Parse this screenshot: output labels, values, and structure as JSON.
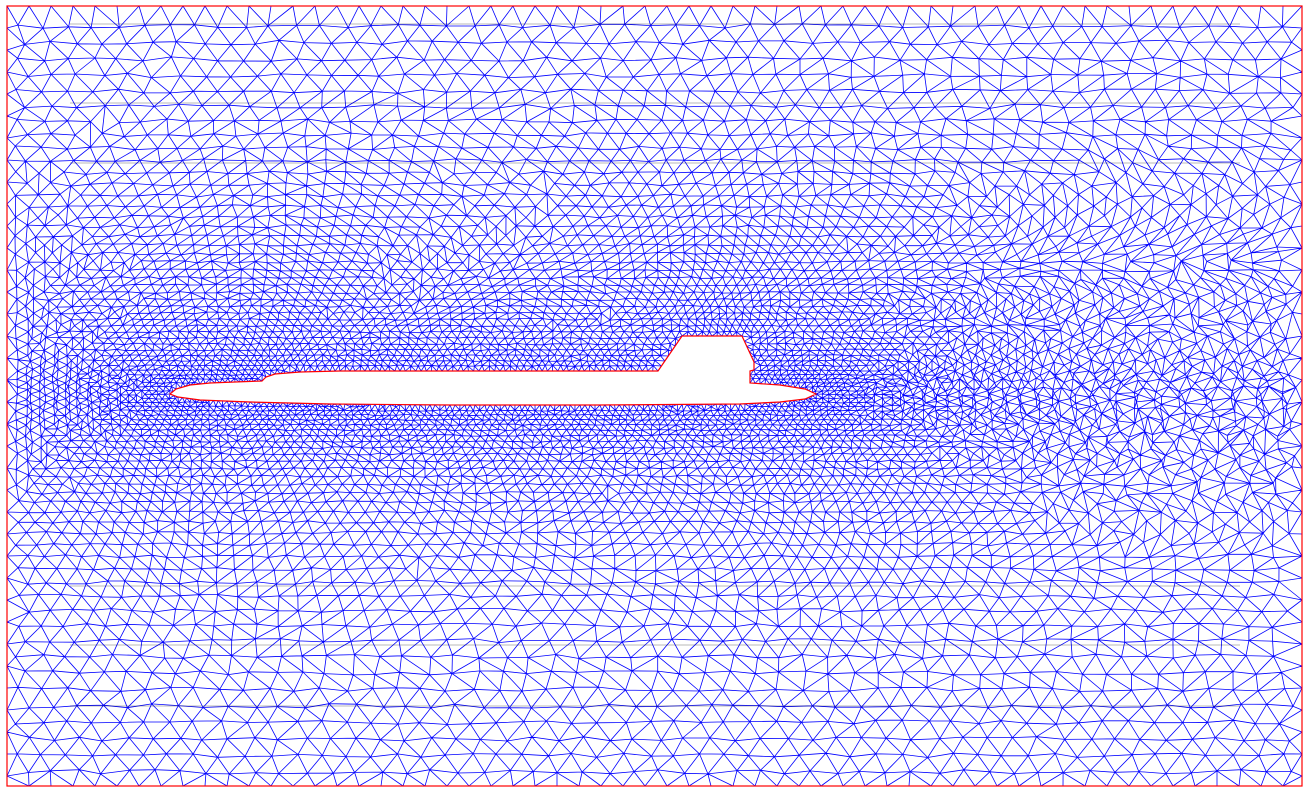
{
  "figure": {
    "kind": "triangular-mesh",
    "subject": "submarine-hull",
    "colors": {
      "background": "#ffffff",
      "mesh_edges": "#0000ff",
      "boundary": "#ff0000",
      "horizontal_lines": "#000000"
    },
    "legend": "none",
    "grid": false
  }
}
